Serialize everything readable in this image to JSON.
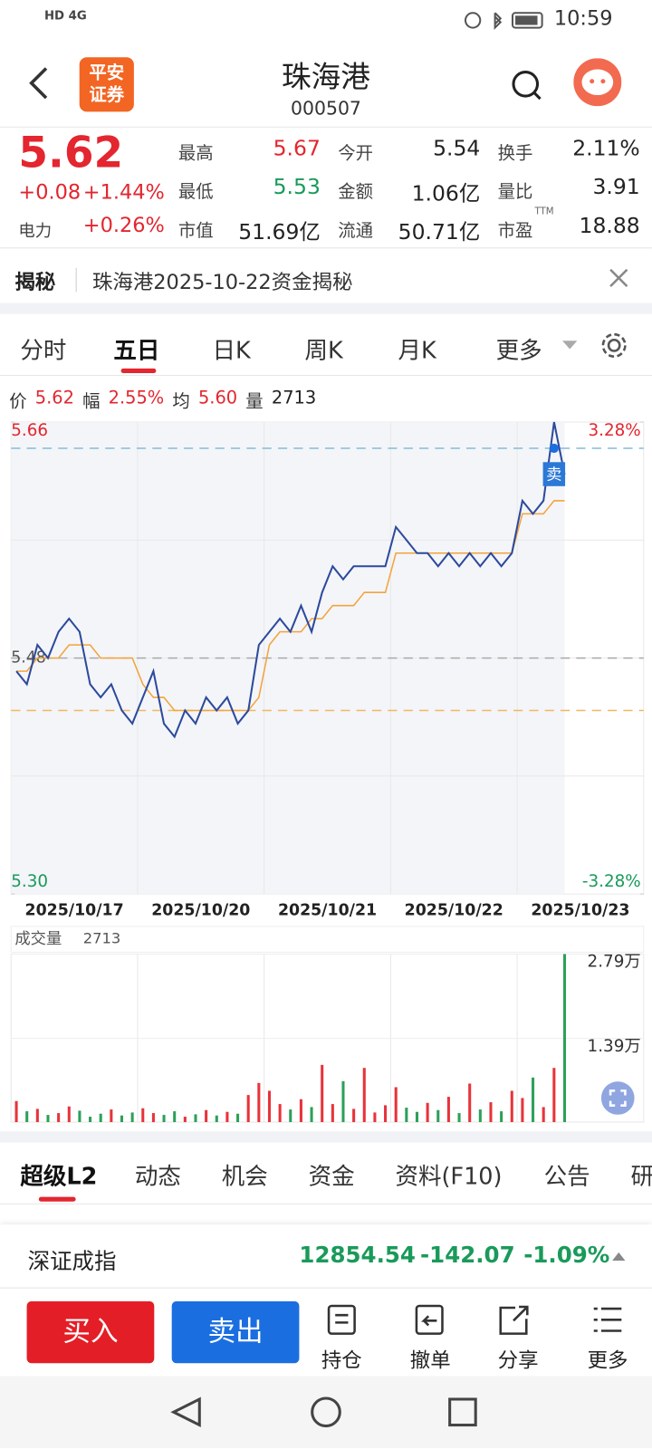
{
  "status_bar": {
    "network": "4G",
    "time": "10:59"
  },
  "header": {
    "logo": [
      "平安",
      "证券"
    ],
    "name": "珠海港",
    "code": "000507"
  },
  "quote": {
    "price": "5.62",
    "change": "+0.08",
    "change_pct": "+1.44%",
    "power": {
      "label": "电力",
      "value": "+0.26%"
    },
    "stats": [
      {
        "label": "最高",
        "value": "5.67"
      },
      {
        "label": "今开",
        "value": "5.54"
      },
      {
        "label": "换手",
        "value": "2.11%"
      },
      {
        "label": "最低",
        "value": "5.53"
      },
      {
        "label": "金额",
        "value": "1.06亿"
      },
      {
        "label": "量比",
        "value": "3.91"
      },
      {
        "label": "市值",
        "value": "51.69亿"
      },
      {
        "label": "流通",
        "value": "50.71亿"
      },
      {
        "label": "市盈",
        "value": "18.88",
        "note": "TTM"
      }
    ]
  },
  "notice": {
    "tag": "揭秘",
    "text": "珠海港2025-10-22资金揭秘"
  },
  "period_tabs": [
    "分时",
    "五日",
    "日K",
    "周K",
    "月K",
    "更多"
  ],
  "chart_info": [
    {
      "label": "价",
      "value": "5.62"
    },
    {
      "label": "幅",
      "value": "2.55%"
    },
    {
      "label": "均",
      "value": "5.60"
    },
    {
      "label": "量",
      "value": "2713"
    }
  ],
  "chart_data": [
    {
      "type": "line",
      "day_labels": [
        "2025/10/17",
        "2025/10/20",
        "2025/10/21",
        "2025/10/22",
        "2025/10/23"
      ],
      "series": [
        {
          "color": "#2c4a9c",
          "values": [
            5.47,
            5.46,
            5.49,
            5.48,
            5.5,
            5.51,
            5.5,
            5.46,
            5.45,
            5.46,
            5.44,
            5.43,
            5.45,
            5.47,
            5.43,
            5.42,
            5.44,
            5.43,
            5.45,
            5.44,
            5.45,
            5.43,
            5.44,
            5.49,
            5.5,
            5.51,
            5.5,
            5.52,
            5.5,
            5.53,
            5.55,
            5.54,
            5.55,
            5.55,
            5.55,
            5.55,
            5.58,
            5.57,
            5.56,
            5.56,
            5.55,
            5.56,
            5.55,
            5.56,
            5.55,
            5.56,
            5.55,
            5.56,
            5.6,
            5.59,
            5.6,
            5.66,
            5.62
          ]
        },
        {
          "color": "#f2a43a",
          "values": [
            5.47,
            5.47,
            5.48,
            5.48,
            5.48,
            5.49,
            5.49,
            5.49,
            5.48,
            5.48,
            5.48,
            5.48,
            5.46,
            5.45,
            5.45,
            5.44,
            5.44,
            5.44,
            5.44,
            5.44,
            5.44,
            5.44,
            5.44,
            5.45,
            5.49,
            5.5,
            5.5,
            5.5,
            5.51,
            5.51,
            5.52,
            5.52,
            5.52,
            5.53,
            5.53,
            5.53,
            5.56,
            5.56,
            5.56,
            5.56,
            5.56,
            5.56,
            5.56,
            5.56,
            5.56,
            5.56,
            5.56,
            5.56,
            5.59,
            5.59,
            5.59,
            5.6,
            5.6
          ]
        }
      ],
      "ylim": [
        5.3,
        5.66
      ],
      "yticks": [
        {
          "value": 5.3,
          "label": "5.30"
        },
        5.66
      ],
      "y2lim": [
        -3.28,
        3.28
      ],
      "y2ticks": [
        {
          "value": -3.28,
          "label": "-3.28%"
        },
        {
          "value": 3.28,
          "label": "3.28%"
        }
      ],
      "ref_lines": [
        {
          "value": 5.48,
          "label": "5.48",
          "color": "#aaaaaa"
        },
        {
          "value": 5.64,
          "color": "#86bcd6"
        },
        {
          "value": 5.44,
          "color": "#f0b860"
        }
      ],
      "signal": {
        "label": "卖",
        "value": 5.64
      }
    },
    {
      "type": "bar",
      "title": "成交量",
      "current": "2713",
      "up_color": "#e8333a",
      "down_color": "#2ca05a",
      "values": [
        3500,
        1800,
        2200,
        1200,
        1500,
        2600,
        1900,
        900,
        1400,
        2100,
        1100,
        1600,
        2300,
        1500,
        1200,
        1800,
        900,
        1300,
        2000,
        1100,
        1700,
        1400,
        4500,
        6500,
        5200,
        3000,
        2100,
        3800,
        2500,
        9500,
        3000,
        6800,
        2200,
        9000,
        1600,
        2800,
        5800,
        2400,
        1700,
        3200,
        2000,
        4200,
        1500,
        6400,
        2100,
        3300,
        1800,
        5200,
        4000,
        7400,
        2500,
        9000,
        27900
      ],
      "ylim": [
        0,
        27900
      ],
      "yticks": [
        {
          "value": 13900,
          "label": "1.39万"
        },
        {
          "value": 27900,
          "label": "2.79万"
        }
      ]
    }
  ],
  "section_tabs": [
    "超级L2",
    "动态",
    "机会",
    "资金",
    "资料(F10)",
    "公告",
    "研"
  ],
  "index_bar": {
    "name": "深证成指",
    "value": "12854.54",
    "change": "-142.07",
    "change_pct": "-1.09%"
  },
  "actions": [
    "买入",
    "卖出",
    "持仓",
    "撤单",
    "分享",
    "更多"
  ]
}
